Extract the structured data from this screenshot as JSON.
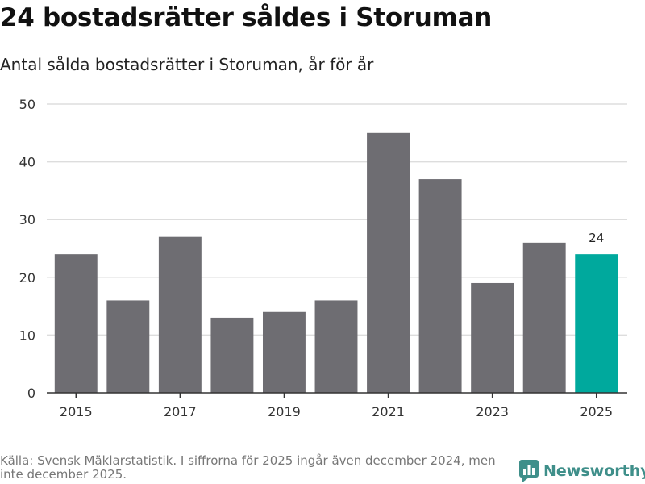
{
  "title": "24 bostadsrätter såldes i Storuman",
  "subtitle": "Antal sålda bostadsrätter i Storuman, år för år",
  "source": "Källa: Svensk Mäklarstatistik. I siffrorna för 2025 ingår även december 2024, men inte december 2025.",
  "brand": {
    "name": "Newsworthy",
    "icon": "newsworthy-logo-icon"
  },
  "colors": {
    "bar": "#6e6d72",
    "highlight": "#00a99d",
    "grid": "#dddddd",
    "axis": "#333333"
  },
  "chart_data": {
    "type": "bar",
    "title": "Antal sålda bostadsrätter i Storuman, år för år",
    "categories": [
      "2015",
      "2016",
      "2017",
      "2018",
      "2019",
      "2020",
      "2021",
      "2022",
      "2023",
      "2024",
      "2025"
    ],
    "values": [
      24,
      16,
      27,
      13,
      14,
      16,
      45,
      37,
      19,
      26,
      24
    ],
    "xtick_labels": [
      "2015",
      "2017",
      "2019",
      "2021",
      "2023",
      "2025"
    ],
    "yticks": [
      0,
      10,
      20,
      30,
      40,
      50
    ],
    "ylim": [
      0,
      50
    ],
    "xlabel": "",
    "ylabel": "",
    "grid": true,
    "highlight_category": "2025",
    "data_labels": [
      {
        "category": "2025",
        "text": "24"
      }
    ]
  }
}
